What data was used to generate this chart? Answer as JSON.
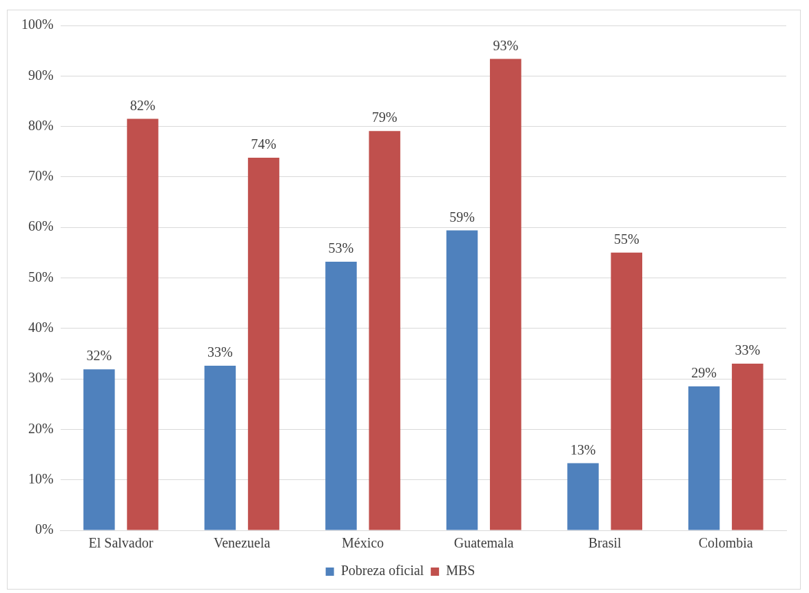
{
  "chart_data": {
    "type": "bar",
    "categories": [
      "El Salvador",
      "Venezuela",
      "México",
      "Guatemala",
      "Brasil",
      "Colombia"
    ],
    "series": [
      {
        "name": "Pobreza oficial",
        "color": "#4f81bd",
        "values": [
          31.9,
          32.6,
          53.2,
          59.4,
          13.3,
          28.5
        ],
        "value_labels": [
          "32%",
          "33%",
          "53%",
          "59%",
          "13%",
          "29%"
        ]
      },
      {
        "name": "MBS",
        "color": "#c0504d",
        "values": [
          81.5,
          73.8,
          79.1,
          93.4,
          55,
          33
        ],
        "value_labels": [
          "82%",
          "74%",
          "79%",
          "93%",
          "55%",
          "33%"
        ]
      }
    ],
    "ylim": [
      0,
      100
    ],
    "yticks": [
      {
        "value": 0,
        "label": "0%"
      },
      {
        "value": 10,
        "label": "10%"
      },
      {
        "value": 20,
        "label": "20%"
      },
      {
        "value": 30,
        "label": "30%"
      },
      {
        "value": 40,
        "label": "40%"
      },
      {
        "value": 50,
        "label": "50%"
      },
      {
        "value": 60,
        "label": "60%"
      },
      {
        "value": 70,
        "label": "70%"
      },
      {
        "value": 80,
        "label": "80%"
      },
      {
        "value": 90,
        "label": "90%"
      },
      {
        "value": 100,
        "label": "100%"
      }
    ],
    "grid": "y",
    "legend": "bottom"
  }
}
